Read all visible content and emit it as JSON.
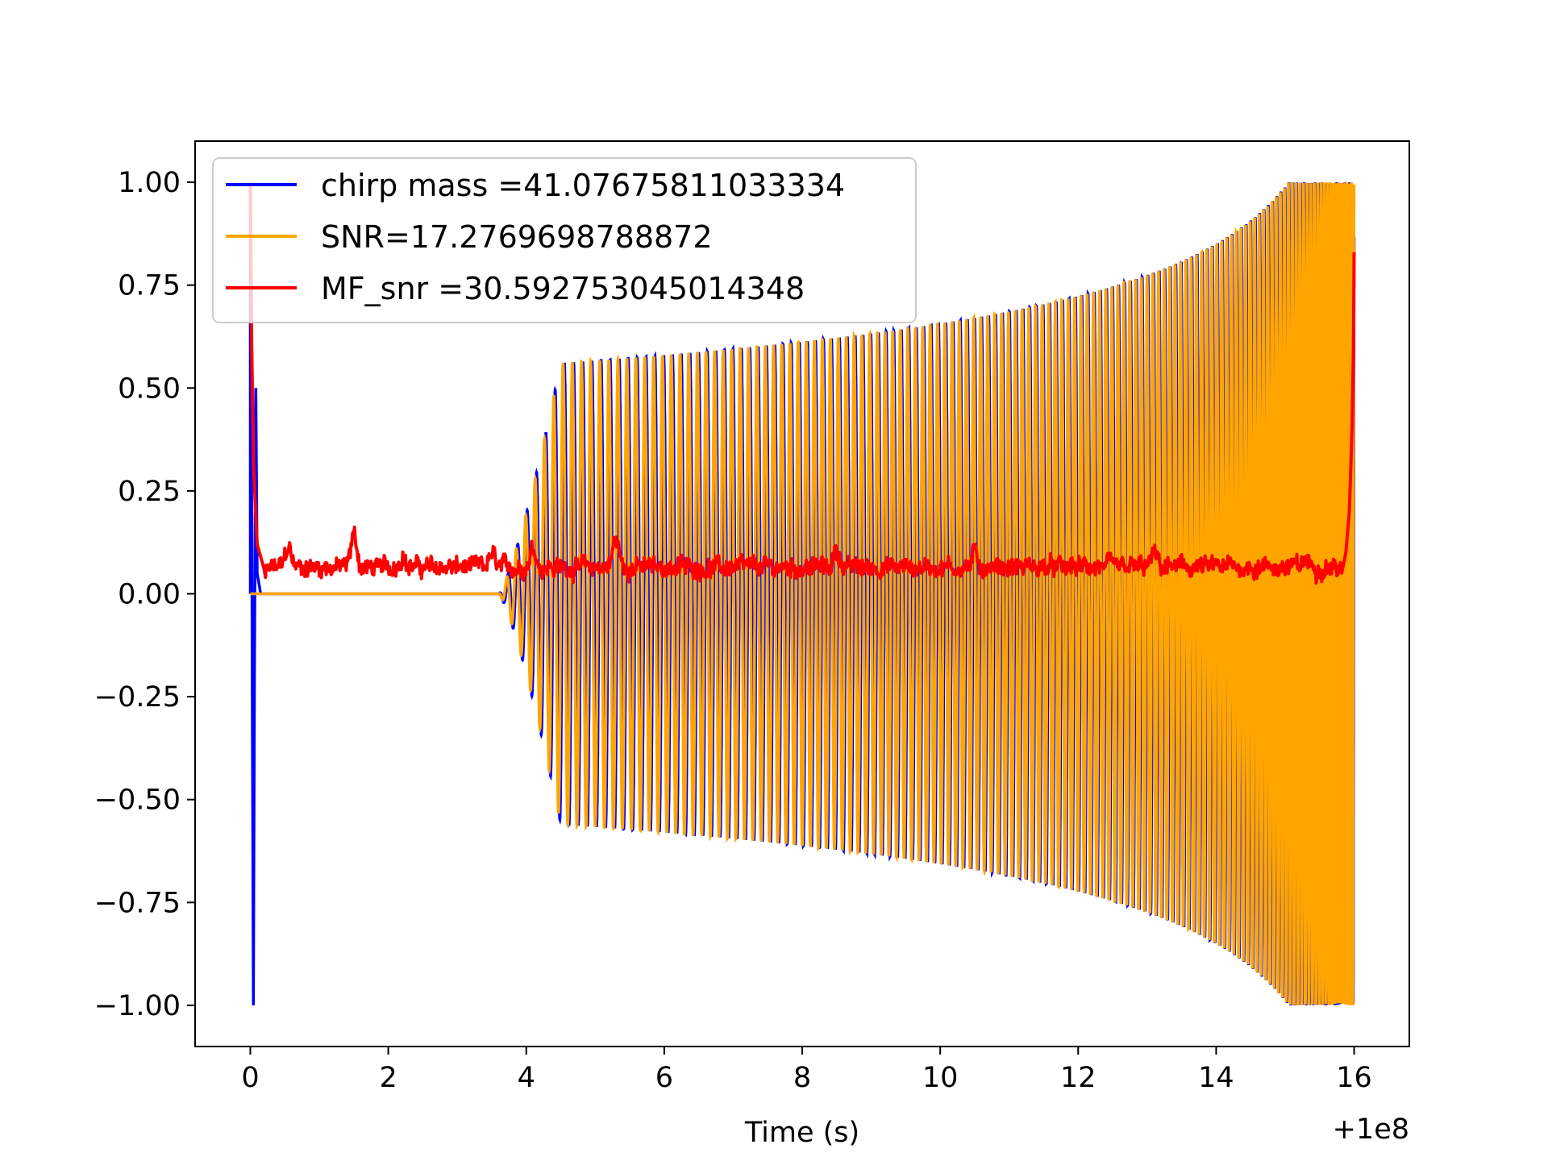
{
  "chart_data": {
    "type": "line",
    "title": "",
    "xlabel": "Time (s)",
    "ylabel": "",
    "x_offset_label": "+1e8",
    "xlim": [
      -0.8,
      16.8
    ],
    "ylim": [
      -1.1,
      1.1
    ],
    "x_ticks": [
      0,
      2,
      4,
      6,
      8,
      10,
      12,
      14,
      16
    ],
    "x_tick_labels": [
      "0",
      "2",
      "4",
      "6",
      "8",
      "10",
      "12",
      "14",
      "16"
    ],
    "y_ticks": [
      1.0,
      0.75,
      0.5,
      0.25,
      0.0,
      -0.25,
      -0.5,
      -0.75,
      -1.0
    ],
    "y_tick_labels": [
      "1.00",
      "0.75",
      "0.50",
      "0.25",
      "0.00",
      "−0.25",
      "−0.50",
      "−0.75",
      "−1.00"
    ],
    "grid": false,
    "legend_position": "top-left",
    "series": [
      {
        "name": "chirp mass =41.07675811033334",
        "color": "#0000ff",
        "shape": "chirp waveform oscillating from 3.7 s to 16 s, amplitude growing from ~0.55 to 1.0, plus spike near t=0 reaching -1.0",
        "envelope": {
          "x": [
            3.7,
            4.5,
            6,
            8,
            10,
            12,
            14,
            15,
            16
          ],
          "upper": [
            0.0,
            0.56,
            0.58,
            0.61,
            0.65,
            0.72,
            0.82,
            0.9,
            1.0
          ],
          "lower": [
            0.0,
            -0.56,
            -0.58,
            -0.61,
            -0.65,
            -0.72,
            -0.82,
            -0.9,
            -1.0
          ]
        }
      },
      {
        "name": "SNR=17.2769698788872",
        "color": "#ffa500",
        "shape": "flat at 0 until ~3.6 s, then dense chirp oscillation growing to amplitude 1.0 at 16 s"
      },
      {
        "name": "MF_snr =30.592753045014348",
        "color": "#ff0000",
        "shape": "spike to 1.0 at t=0, decays to noisy baseline ~0.04 from 0.2 s to 15.8 s, rises to ~0.83 at 16 s",
        "x": [
          0.0,
          0.05,
          0.1,
          0.2,
          1.5,
          5.3,
          15.8,
          15.9,
          16.0
        ],
        "y": [
          1.0,
          0.35,
          0.12,
          0.06,
          0.12,
          0.12,
          0.06,
          0.3,
          0.83
        ]
      }
    ]
  }
}
